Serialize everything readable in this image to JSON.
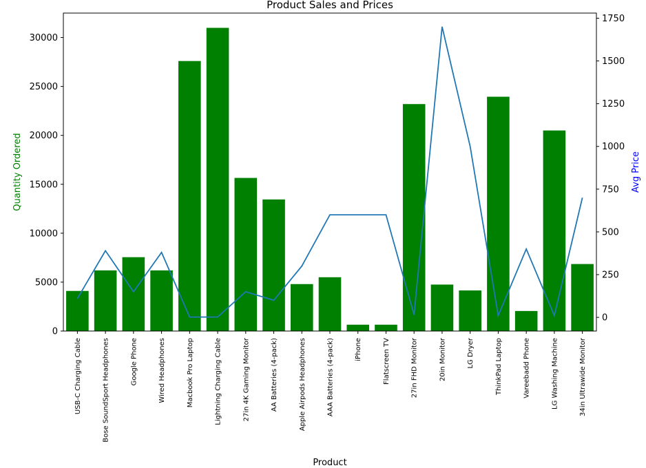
{
  "chart_data": {
    "type": "bar",
    "title": "Product Sales and Prices",
    "xlabel": "Product",
    "ylabel": "Quantity Ordered",
    "y2label": "Avg Price",
    "ylim": [
      0,
      32500
    ],
    "y2lim": [
      -80,
      1780
    ],
    "yticks": [
      0,
      5000,
      10000,
      15000,
      20000,
      25000,
      30000
    ],
    "y2ticks": [
      0,
      250,
      500,
      750,
      1000,
      1250,
      1500,
      1750
    ],
    "grid": false,
    "categories": [
      "USB-C Charging Cable",
      "Bose SoundSport Headphones",
      "Google Phone",
      "Wired Headphones",
      "Macbook Pro Laptop",
      "Lightning Charging Cable",
      "27in 4K Gaming Monitor",
      "AA Batteries (4-pack)",
      "Apple Airpods Headphones",
      "AAA Batteries (4-pack)",
      "iPhone",
      "Flatscreen TV",
      "27in FHD Monitor",
      "20in Monitor",
      "LG Dryer",
      "ThinkPad Laptop",
      "Vareebadd Phone",
      "LG Washing Machine",
      "34in Ultrawide Monitor"
    ],
    "series": [
      {
        "type": "bar",
        "axis": "left",
        "color": "#008000",
        "values": [
          4100,
          6200,
          7550,
          6200,
          27600,
          30990,
          15650,
          13450,
          4800,
          5500,
          650,
          650,
          23200,
          4750,
          4150,
          23950,
          2050,
          20500,
          6850
        ]
      },
      {
        "type": "line",
        "axis": "right",
        "color": "#1f77b4",
        "values": [
          110,
          390,
          150,
          380,
          2,
          2,
          150,
          100,
          300,
          600,
          600,
          600,
          15,
          1700,
          1000,
          10,
          400,
          10,
          700
        ]
      }
    ],
    "colors": {
      "left_axis_label": "#008000",
      "right_axis_label": "#0000ff"
    }
  }
}
